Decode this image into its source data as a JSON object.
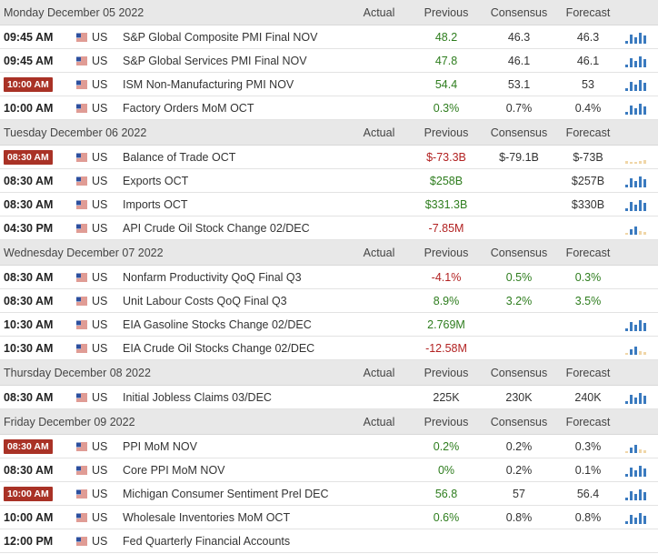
{
  "columns": {
    "actual": "Actual",
    "previous": "Previous",
    "consensus": "Consensus",
    "forecast": "Forecast"
  },
  "colors": {
    "positive": "#2e7d1e",
    "negative": "#b22222",
    "highlight_time": "#a93226",
    "spark_blue": "#3a7abf",
    "spark_tan": "#f0d6a8"
  },
  "days": [
    {
      "date": "Monday December 05 2022",
      "events": [
        {
          "time": "09:45 AM",
          "highlight": false,
          "country": "US",
          "event": "S&P Global Composite PMI Final NOV",
          "actual": "",
          "previous": "48.2",
          "previous_tone": "pos",
          "consensus": "46.3",
          "forecast": "46.3",
          "spark": "blue"
        },
        {
          "time": "09:45 AM",
          "highlight": false,
          "country": "US",
          "event": "S&P Global Services PMI Final NOV",
          "actual": "",
          "previous": "47.8",
          "previous_tone": "pos",
          "consensus": "46.1",
          "forecast": "46.1",
          "spark": "blue"
        },
        {
          "time": "10:00 AM",
          "highlight": true,
          "country": "US",
          "event": "ISM Non-Manufacturing PMI NOV",
          "actual": "",
          "previous": "54.4",
          "previous_tone": "pos",
          "consensus": "53.1",
          "forecast": "53",
          "spark": "blue"
        },
        {
          "time": "10:00 AM",
          "highlight": false,
          "country": "US",
          "event": "Factory Orders MoM OCT",
          "actual": "",
          "previous": "0.3%",
          "previous_tone": "pos",
          "consensus": "0.7%",
          "forecast": "0.4%",
          "spark": "blue"
        }
      ]
    },
    {
      "date": "Tuesday December 06 2022",
      "events": [
        {
          "time": "08:30 AM",
          "highlight": true,
          "country": "US",
          "event": "Balance of Trade OCT",
          "actual": "",
          "previous": "$-73.3B",
          "previous_tone": "neg",
          "consensus": "$-79.1B",
          "forecast": "$-73B",
          "spark": "tan"
        },
        {
          "time": "08:30 AM",
          "highlight": false,
          "country": "US",
          "event": "Exports OCT",
          "actual": "",
          "previous": "$258B",
          "previous_tone": "pos",
          "consensus": "",
          "forecast": "$257B",
          "spark": "blue"
        },
        {
          "time": "08:30 AM",
          "highlight": false,
          "country": "US",
          "event": "Imports OCT",
          "actual": "",
          "previous": "$331.3B",
          "previous_tone": "pos",
          "consensus": "",
          "forecast": "$330B",
          "spark": "blue"
        },
        {
          "time": "04:30 PM",
          "highlight": false,
          "country": "US",
          "event": "API Crude Oil Stock Change 02/DEC",
          "actual": "",
          "previous": "-7.85M",
          "previous_tone": "neg",
          "consensus": "",
          "forecast": "",
          "spark": "mixed"
        }
      ]
    },
    {
      "date": "Wednesday December 07 2022",
      "events": [
        {
          "time": "08:30 AM",
          "highlight": false,
          "country": "US",
          "event": "Nonfarm Productivity QoQ Final Q3",
          "actual": "",
          "previous": "-4.1%",
          "previous_tone": "neg",
          "consensus": "0.5%",
          "consensus_tone": "pos",
          "forecast": "0.3%",
          "forecast_tone": "pos",
          "spark": ""
        },
        {
          "time": "08:30 AM",
          "highlight": false,
          "country": "US",
          "event": "Unit Labour Costs QoQ Final Q3",
          "actual": "",
          "previous": "8.9%",
          "previous_tone": "pos",
          "consensus": "3.2%",
          "consensus_tone": "pos",
          "forecast": "3.5%",
          "forecast_tone": "pos",
          "spark": ""
        },
        {
          "time": "10:30 AM",
          "highlight": false,
          "country": "US",
          "event": "EIA Gasoline Stocks Change 02/DEC",
          "actual": "",
          "previous": "2.769M",
          "previous_tone": "pos",
          "consensus": "",
          "forecast": "",
          "spark": "blue"
        },
        {
          "time": "10:30 AM",
          "highlight": false,
          "country": "US",
          "event": "EIA Crude Oil Stocks Change 02/DEC",
          "actual": "",
          "previous": "-12.58M",
          "previous_tone": "neg",
          "consensus": "",
          "forecast": "",
          "spark": "mixed"
        }
      ]
    },
    {
      "date": "Thursday December 08 2022",
      "events": [
        {
          "time": "08:30 AM",
          "highlight": false,
          "country": "US",
          "event": "Initial Jobless Claims 03/DEC",
          "actual": "",
          "previous": "225K",
          "previous_tone": "neu",
          "consensus": "230K",
          "forecast": "240K",
          "spark": "blue"
        }
      ]
    },
    {
      "date": "Friday December 09 2022",
      "events": [
        {
          "time": "08:30 AM",
          "highlight": true,
          "country": "US",
          "event": "PPI MoM NOV",
          "actual": "",
          "previous": "0.2%",
          "previous_tone": "pos",
          "consensus": "0.2%",
          "forecast": "0.3%",
          "spark": "mixed"
        },
        {
          "time": "08:30 AM",
          "highlight": false,
          "country": "US",
          "event": "Core PPI MoM NOV",
          "actual": "",
          "previous": "0%",
          "previous_tone": "pos",
          "consensus": "0.2%",
          "forecast": "0.1%",
          "spark": "blue"
        },
        {
          "time": "10:00 AM",
          "highlight": true,
          "country": "US",
          "event": "Michigan Consumer Sentiment Prel DEC",
          "actual": "",
          "previous": "56.8",
          "previous_tone": "pos",
          "consensus": "57",
          "forecast": "56.4",
          "spark": "blue"
        },
        {
          "time": "10:00 AM",
          "highlight": false,
          "country": "US",
          "event": "Wholesale Inventories MoM OCT",
          "actual": "",
          "previous": "0.6%",
          "previous_tone": "pos",
          "consensus": "0.8%",
          "forecast": "0.8%",
          "spark": "blue"
        },
        {
          "time": "12:00 PM",
          "highlight": false,
          "country": "US",
          "event": "Fed Quarterly Financial Accounts",
          "actual": "",
          "previous": "",
          "previous_tone": "neu",
          "consensus": "",
          "forecast": "",
          "spark": ""
        }
      ]
    }
  ]
}
